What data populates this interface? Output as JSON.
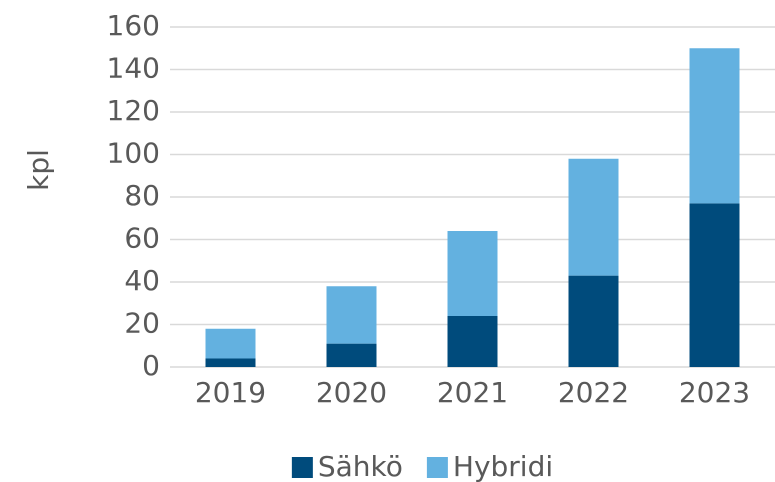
{
  "chart_data": {
    "type": "stacked_bar",
    "y_label": "kpl",
    "categories": [
      "2019",
      "2020",
      "2021",
      "2022",
      "2023"
    ],
    "series": [
      {
        "name": "Sähkö",
        "color": "#004b7c",
        "values": [
          4,
          11,
          24,
          43,
          77
        ]
      },
      {
        "name": "Hybridi",
        "color": "#63b1e0",
        "values": [
          14,
          27,
          40,
          55,
          73
        ]
      }
    ],
    "ylim": [
      0,
      160
    ],
    "yticks": [
      0,
      20,
      40,
      60,
      80,
      100,
      120,
      140,
      160
    ],
    "grid": true,
    "legend": "bottom"
  }
}
